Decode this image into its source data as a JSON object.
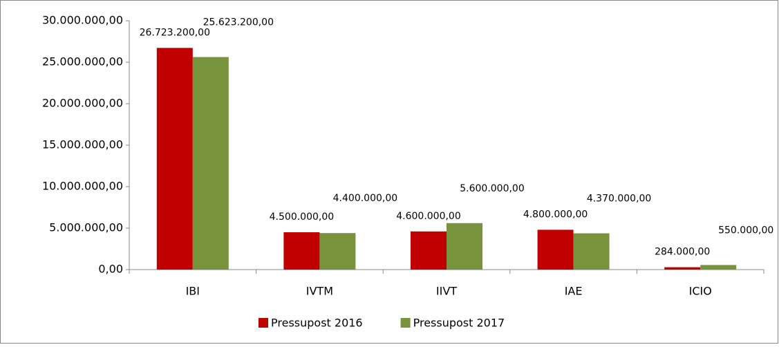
{
  "chart_data": {
    "type": "bar",
    "categories": [
      "IBI",
      "IVTM",
      "IIVT",
      "IAE",
      "ICIO"
    ],
    "series": [
      {
        "name": "Pressupost 2016",
        "color": "#c00000",
        "values": [
          26723200,
          4500000,
          4600000,
          4800000,
          284000
        ],
        "value_labels": [
          "26.723.200,00",
          "4.500.000,00",
          "4.600.000,00",
          "4.800.000,00",
          "284.000,00"
        ]
      },
      {
        "name": "Pressupost 2017",
        "color": "#77933c",
        "values": [
          25623200,
          4400000,
          5600000,
          4370000,
          550000
        ],
        "value_labels": [
          "25.623.200,00",
          "4.400.000,00",
          "5.600.000,00",
          "4.370.000,00",
          "550.000,00"
        ]
      }
    ],
    "ylim": [
      0,
      30000000
    ],
    "yticks": [
      {
        "value": 0,
        "label": "0,00"
      },
      {
        "value": 5000000,
        "label": "5.000.000,00"
      },
      {
        "value": 10000000,
        "label": "10.000.000,00"
      },
      {
        "value": 15000000,
        "label": "15.000.000,00"
      },
      {
        "value": 20000000,
        "label": "20.000.000,00"
      },
      {
        "value": 25000000,
        "label": "25.000.000,00"
      },
      {
        "value": 30000000,
        "label": "30.000.000,00"
      }
    ],
    "legend": "bottom"
  }
}
